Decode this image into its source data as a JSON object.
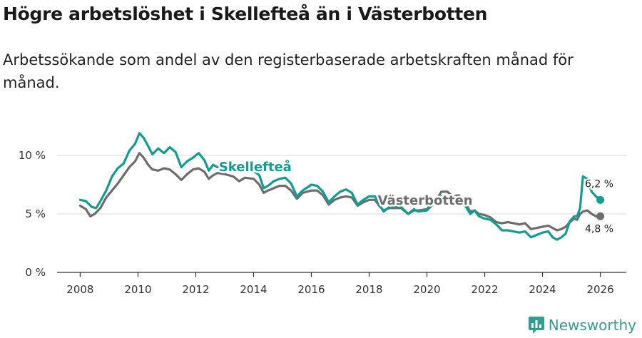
{
  "title": "Högre arbetslöshet i Skellefteå än i Västerbotten",
  "subtitle": "Arbetssökande som andel av den registerbaserade arbetskraften månad för månad.",
  "brand": "Newsworthy",
  "colors": {
    "skelleftea": "#0f9e94",
    "vasterbotten": "#6d6d6d",
    "grid": "#d9d9d9",
    "axis": "#333333"
  },
  "chart_data": {
    "type": "line",
    "title": "Högre arbetslöshet i Skellefteå än i Västerbotten",
    "ylabel": "",
    "xlabel": "",
    "xlim": [
      2007.2,
      2026.9
    ],
    "ylim": [
      0,
      10
    ],
    "x_ticks": [
      2008,
      2010,
      2012,
      2014,
      2016,
      2018,
      2020,
      2022,
      2024,
      2026
    ],
    "x_tick_labels": [
      "2008",
      "2010",
      "2012",
      "2014",
      "2016",
      "2018",
      "2020",
      "2022",
      "2024",
      "2026"
    ],
    "y_ticks": [
      0,
      5,
      10
    ],
    "y_tick_labels": [
      "0 %",
      "5 %",
      "10 %"
    ],
    "series": [
      {
        "name": "Skellefteå",
        "label": "Skellefteå",
        "end_label": "6,2 %",
        "end_value": 6.2,
        "points": [
          [
            2008.0,
            6.2
          ],
          [
            2008.2,
            6.1
          ],
          [
            2008.4,
            5.6
          ],
          [
            2008.55,
            5.5
          ],
          [
            2008.7,
            6.1
          ],
          [
            2008.9,
            7.0
          ],
          [
            2009.1,
            8.2
          ],
          [
            2009.3,
            8.9
          ],
          [
            2009.5,
            9.3
          ],
          [
            2009.7,
            10.4
          ],
          [
            2009.9,
            11.0
          ],
          [
            2010.05,
            11.9
          ],
          [
            2010.2,
            11.5
          ],
          [
            2010.35,
            10.8
          ],
          [
            2010.5,
            10.1
          ],
          [
            2010.7,
            10.6
          ],
          [
            2010.9,
            10.2
          ],
          [
            2011.1,
            10.7
          ],
          [
            2011.3,
            10.3
          ],
          [
            2011.5,
            9.0
          ],
          [
            2011.7,
            9.5
          ],
          [
            2011.9,
            9.8
          ],
          [
            2012.1,
            10.2
          ],
          [
            2012.3,
            9.6
          ],
          [
            2012.45,
            8.7
          ],
          [
            2012.6,
            9.2
          ],
          [
            2012.75,
            9.0
          ],
          [
            2013.0,
            9.2
          ],
          [
            2013.3,
            9.0
          ],
          [
            2013.5,
            8.6
          ],
          [
            2013.7,
            9.1
          ],
          [
            2014.0,
            8.7
          ],
          [
            2014.2,
            8.3
          ],
          [
            2014.35,
            7.2
          ],
          [
            2014.5,
            7.4
          ],
          [
            2014.7,
            7.8
          ],
          [
            2014.9,
            8.0
          ],
          [
            2015.1,
            8.1
          ],
          [
            2015.3,
            7.6
          ],
          [
            2015.5,
            6.5
          ],
          [
            2015.7,
            7.0
          ],
          [
            2016.0,
            7.5
          ],
          [
            2016.2,
            7.4
          ],
          [
            2016.4,
            6.9
          ],
          [
            2016.6,
            6.0
          ],
          [
            2016.8,
            6.5
          ],
          [
            2017.0,
            6.9
          ],
          [
            2017.2,
            7.1
          ],
          [
            2017.4,
            6.8
          ],
          [
            2017.6,
            5.8
          ],
          [
            2017.8,
            6.2
          ],
          [
            2018.0,
            6.5
          ],
          [
            2018.2,
            6.5
          ],
          [
            2018.35,
            5.8
          ],
          [
            2018.5,
            5.2
          ],
          [
            2018.7,
            5.6
          ],
          [
            2018.9,
            5.7
          ],
          [
            2019.1,
            5.6
          ],
          [
            2019.35,
            5.0
          ],
          [
            2019.55,
            5.4
          ],
          [
            2019.7,
            5.2
          ],
          [
            2020.0,
            5.3
          ],
          [
            2020.2,
            5.8
          ],
          [
            2020.35,
            6.1
          ],
          [
            2020.5,
            6.5
          ],
          [
            2020.7,
            6.5
          ],
          [
            2020.9,
            6.2
          ],
          [
            2021.1,
            6.3
          ],
          [
            2021.3,
            5.8
          ],
          [
            2021.5,
            5.0
          ],
          [
            2021.65,
            5.3
          ],
          [
            2021.8,
            4.8
          ],
          [
            2022.0,
            4.6
          ],
          [
            2022.2,
            4.5
          ],
          [
            2022.4,
            4.1
          ],
          [
            2022.6,
            3.6
          ],
          [
            2022.8,
            3.6
          ],
          [
            2023.0,
            3.5
          ],
          [
            2023.2,
            3.4
          ],
          [
            2023.4,
            3.5
          ],
          [
            2023.6,
            3.0
          ],
          [
            2023.8,
            3.2
          ],
          [
            2024.0,
            3.4
          ],
          [
            2024.2,
            3.5
          ],
          [
            2024.35,
            3.0
          ],
          [
            2024.5,
            2.8
          ],
          [
            2024.65,
            3.0
          ],
          [
            2024.8,
            3.3
          ],
          [
            2024.95,
            4.4
          ],
          [
            2025.1,
            4.8
          ],
          [
            2025.2,
            4.8
          ],
          [
            2025.3,
            5.5
          ],
          [
            2025.4,
            8.2
          ],
          [
            2025.55,
            8.0
          ],
          [
            2025.7,
            6.9
          ],
          [
            2025.85,
            6.5
          ],
          [
            2026.0,
            6.2
          ]
        ]
      },
      {
        "name": "Västerbotten",
        "label": "Västerbotten",
        "end_label": "4,8 %",
        "end_value": 4.8,
        "points": [
          [
            2008.0,
            5.7
          ],
          [
            2008.2,
            5.4
          ],
          [
            2008.35,
            4.8
          ],
          [
            2008.5,
            5.0
          ],
          [
            2008.7,
            5.5
          ],
          [
            2008.9,
            6.4
          ],
          [
            2009.1,
            7.0
          ],
          [
            2009.3,
            7.6
          ],
          [
            2009.5,
            8.3
          ],
          [
            2009.7,
            9.0
          ],
          [
            2009.9,
            9.5
          ],
          [
            2010.05,
            10.2
          ],
          [
            2010.2,
            9.8
          ],
          [
            2010.35,
            9.2
          ],
          [
            2010.5,
            8.8
          ],
          [
            2010.7,
            8.7
          ],
          [
            2010.9,
            8.9
          ],
          [
            2011.1,
            8.8
          ],
          [
            2011.3,
            8.4
          ],
          [
            2011.5,
            7.9
          ],
          [
            2011.7,
            8.4
          ],
          [
            2011.9,
            8.8
          ],
          [
            2012.1,
            8.9
          ],
          [
            2012.3,
            8.6
          ],
          [
            2012.45,
            8.0
          ],
          [
            2012.6,
            8.3
          ],
          [
            2012.75,
            8.5
          ],
          [
            2013.0,
            8.4
          ],
          [
            2013.3,
            8.2
          ],
          [
            2013.5,
            7.8
          ],
          [
            2013.7,
            8.1
          ],
          [
            2014.0,
            8.0
          ],
          [
            2014.2,
            7.5
          ],
          [
            2014.35,
            6.8
          ],
          [
            2014.5,
            7.0
          ],
          [
            2014.7,
            7.2
          ],
          [
            2014.9,
            7.4
          ],
          [
            2015.1,
            7.4
          ],
          [
            2015.3,
            7.0
          ],
          [
            2015.5,
            6.3
          ],
          [
            2015.7,
            6.8
          ],
          [
            2016.0,
            7.0
          ],
          [
            2016.2,
            7.0
          ],
          [
            2016.4,
            6.6
          ],
          [
            2016.6,
            5.8
          ],
          [
            2016.8,
            6.2
          ],
          [
            2017.0,
            6.4
          ],
          [
            2017.2,
            6.5
          ],
          [
            2017.4,
            6.4
          ],
          [
            2017.6,
            5.7
          ],
          [
            2017.8,
            6.0
          ],
          [
            2018.0,
            6.2
          ],
          [
            2018.2,
            6.2
          ],
          [
            2018.35,
            5.7
          ],
          [
            2018.5,
            5.3
          ],
          [
            2018.7,
            5.5
          ],
          [
            2018.9,
            5.5
          ],
          [
            2019.1,
            5.5
          ],
          [
            2019.35,
            5.0
          ],
          [
            2019.55,
            5.3
          ],
          [
            2019.7,
            5.3
          ],
          [
            2020.0,
            5.4
          ],
          [
            2020.2,
            6.0
          ],
          [
            2020.35,
            6.3
          ],
          [
            2020.5,
            6.9
          ],
          [
            2020.7,
            6.9
          ],
          [
            2020.9,
            6.5
          ],
          [
            2021.1,
            6.6
          ],
          [
            2021.3,
            6.0
          ],
          [
            2021.5,
            5.2
          ],
          [
            2021.65,
            5.3
          ],
          [
            2021.8,
            5.0
          ],
          [
            2022.0,
            4.9
          ],
          [
            2022.2,
            4.7
          ],
          [
            2022.4,
            4.3
          ],
          [
            2022.6,
            4.2
          ],
          [
            2022.8,
            4.3
          ],
          [
            2023.0,
            4.2
          ],
          [
            2023.2,
            4.1
          ],
          [
            2023.4,
            4.2
          ],
          [
            2023.6,
            3.7
          ],
          [
            2023.8,
            3.8
          ],
          [
            2024.0,
            3.9
          ],
          [
            2024.2,
            4.0
          ],
          [
            2024.35,
            3.8
          ],
          [
            2024.5,
            3.6
          ],
          [
            2024.65,
            3.7
          ],
          [
            2024.8,
            3.9
          ],
          [
            2024.95,
            4.3
          ],
          [
            2025.1,
            4.6
          ],
          [
            2025.2,
            4.5
          ],
          [
            2025.3,
            5.0
          ],
          [
            2025.4,
            5.2
          ],
          [
            2025.55,
            5.3
          ],
          [
            2025.7,
            5.0
          ],
          [
            2025.85,
            4.8
          ],
          [
            2026.0,
            4.8
          ]
        ]
      }
    ]
  }
}
